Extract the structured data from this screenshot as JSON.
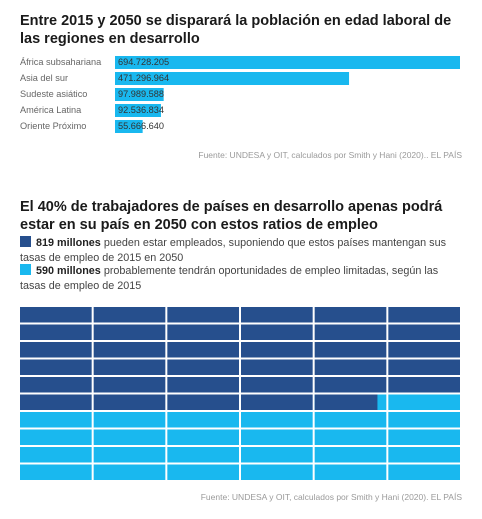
{
  "colors": {
    "dark": "#264f8d",
    "light": "#19b8ef",
    "label": "#666666"
  },
  "chart1": {
    "title": "Entre 2015 y 2050 se disparará la población en edad laboral de las regiones en desarrollo",
    "source": "Fuente: UNDESA y OIT, calculados por Smith y Hani (2020).. EL PAÍS"
  },
  "chart2": {
    "title": "El 40% de trabajadores de países en desarrollo apenas podrá estar en su país en 2050 con estos ratios de empleo",
    "legend": [
      {
        "bold": "819 millones",
        "text": " pueden estar empleados, suponiendo que estos países mantengan sus tasas de empleo de 2015 en 2050"
      },
      {
        "bold": "590 millones",
        "text": " probablemente tendrán oportunidades de empleo limitadas, según las tasas de empleo de 2015"
      }
    ],
    "source": "Fuente: UNDESA y OIT, calculados por Smith y Hani (2020). EL PAÍS"
  },
  "chart_data": [
    {
      "type": "bar",
      "orientation": "horizontal",
      "categories": [
        "África subsahariana",
        "Asia del sur",
        "Sudeste asiático",
        "América Latina",
        "Oriente Próximo"
      ],
      "values": [
        694728205,
        471296964,
        97989588,
        92536834,
        55666640
      ],
      "value_labels": [
        "694.728.205",
        "471.296.964",
        "97.989.588",
        "92.536.834",
        "55.666.640"
      ],
      "title": "Entre 2015 y 2050 se disparará la población en edad laboral de las regiones en desarrollo"
    },
    {
      "type": "waffle",
      "series": [
        {
          "name": "819 millones",
          "value": 819
        },
        {
          "name": "590 millones",
          "value": 590
        }
      ],
      "title": "El 40% de trabajadores de países en desarrollo apenas podrá estar en su país en 2050 con estos ratios de empleo"
    }
  ]
}
